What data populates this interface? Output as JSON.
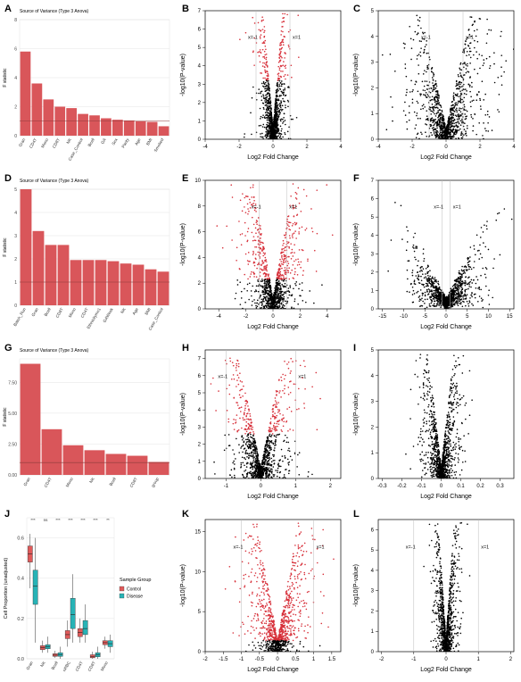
{
  "colors": {
    "bar": "#d9565a",
    "red": "#d7303a",
    "black": "#000000",
    "teal": "#27b3b6",
    "control": "#e05a5a",
    "grid": "#dddddd"
  },
  "chart_data": [
    {
      "panel": "A",
      "type": "bar",
      "title": "Source of Variance (Type 3 Anova)",
      "ylabel": "F statistic",
      "ylim": [
        0,
        8
      ],
      "yticks": [
        0,
        2,
        4,
        6,
        8
      ],
      "refline": 1,
      "categories": [
        "Gran",
        "CD4T",
        "Mono",
        "CD8T",
        "NK",
        "Case_Control",
        "Bcell",
        "GA",
        "Sex",
        "Parity",
        "Age",
        "BMI",
        "Smoked"
      ],
      "values": [
        5.8,
        3.6,
        2.5,
        2.0,
        1.9,
        1.5,
        1.4,
        1.2,
        1.1,
        1.05,
        1.0,
        0.95,
        0.65
      ]
    },
    {
      "panel": "B",
      "type": "scatter",
      "xlabel": "Log2 Fold Change",
      "ylabel": "-log10(P-value)",
      "xlim": [
        -4,
        4
      ],
      "ylim": [
        0,
        7
      ],
      "xticks": [
        -4,
        -2,
        0,
        2,
        4
      ],
      "yticks": [
        0,
        1,
        2,
        3,
        4,
        5,
        6,
        7
      ],
      "vlines": [
        -1,
        1
      ],
      "vline_labels": [
        "x=-1",
        "x=1"
      ],
      "sig_threshold": 3.2,
      "spread": 0.35
    },
    {
      "panel": "C",
      "type": "scatter",
      "xlabel": "Log2 Fold Change",
      "ylabel": "-log10(P-value)",
      "xlim": [
        -4,
        4
      ],
      "ylim": [
        0,
        5
      ],
      "xticks": [
        -4,
        -2,
        0,
        2,
        4
      ],
      "yticks": [
        0,
        1,
        2,
        3,
        4,
        5
      ],
      "vlines": [
        -1,
        1
      ],
      "vline_labels": [
        "x=-1",
        "x=1"
      ],
      "sig_threshold": null,
      "spread": 0.9
    },
    {
      "panel": "D",
      "type": "bar",
      "title": "Source of Variance (Type 3 Anova)",
      "ylabel": "F statistic",
      "ylim": [
        0,
        5
      ],
      "yticks": [
        0,
        1,
        2,
        3,
        4,
        5
      ],
      "refline": 1,
      "categories": [
        "Batch_Run",
        "Gran",
        "Bcell",
        "CD8T",
        "Mono",
        "CD4T",
        "Ethnicitymn1",
        "GAWeek",
        "NK",
        "Age",
        "BMI",
        "Case_Control"
      ],
      "values": [
        5.0,
        3.2,
        2.6,
        2.6,
        1.95,
        1.95,
        1.95,
        1.9,
        1.8,
        1.75,
        1.55,
        1.45
      ]
    },
    {
      "panel": "E",
      "type": "scatter",
      "xlabel": "Log2 Fold Change",
      "ylabel": "-log10(P-value)",
      "xlim": [
        -5,
        5
      ],
      "ylim": [
        0,
        10
      ],
      "xticks": [
        -4,
        -2,
        0,
        2,
        4
      ],
      "yticks": [
        0,
        2,
        4,
        6,
        8,
        10
      ],
      "vlines": [
        -1,
        1
      ],
      "vline_labels": [
        "x=-1",
        "x=1"
      ],
      "sig_threshold": 2.3,
      "spread": 0.9
    },
    {
      "panel": "F",
      "type": "scatter",
      "xlabel": "Log2 Fold Change",
      "ylabel": "-log10(P-value)",
      "xlim": [
        -16,
        16
      ],
      "ylim": [
        0,
        7
      ],
      "xticks": [
        -15,
        -10,
        -5,
        0,
        5,
        10,
        15
      ],
      "yticks": [
        0,
        1,
        2,
        3,
        4,
        5,
        6,
        7
      ],
      "vlines": [
        -1,
        1
      ],
      "vline_labels": [
        "x=-1",
        "x=1"
      ],
      "sig_threshold": null,
      "spread": 3.5
    },
    {
      "panel": "G",
      "type": "bar",
      "title": "Source of Variance (Type 3 Anova)",
      "ylabel": "F statistic",
      "ylim": [
        0,
        9.4
      ],
      "yticks": [
        0,
        2.5,
        5,
        7.5
      ],
      "ytick_labels": [
        "0.00",
        "2.50",
        "5.00",
        "7.50"
      ],
      "refline": 1,
      "categories": [
        "Gran",
        "CD4T",
        "Mono",
        "NK",
        "Bcell",
        "CD8T",
        "group"
      ],
      "values": [
        9.0,
        3.7,
        2.4,
        2.0,
        1.7,
        1.55,
        1.05
      ]
    },
    {
      "panel": "H",
      "type": "scatter",
      "xlabel": "Log2 Fold Change",
      "ylabel": "-log10(P-value)",
      "xlim": [
        -1.6,
        2.3
      ],
      "ylim": [
        0,
        7.5
      ],
      "xticks": [
        -1,
        0,
        1,
        2
      ],
      "yticks": [
        0,
        1,
        2,
        3,
        4,
        5,
        6,
        7
      ],
      "vlines": [
        -1,
        1
      ],
      "vline_labels": [
        "x=-1",
        "x=1"
      ],
      "sig_threshold": 2.6,
      "spread": 0.4
    },
    {
      "panel": "I",
      "type": "scatter",
      "xlabel": "Log2 Fold Change",
      "ylabel": "-log10(P-value)",
      "xlim": [
        -0.32,
        0.37
      ],
      "ylim": [
        0,
        5
      ],
      "xticks": [
        -0.3,
        -0.2,
        -0.1,
        0.0,
        0.1,
        0.2,
        0.3
      ],
      "yticks": [
        0,
        1,
        2,
        3,
        4,
        5
      ],
      "vlines": [],
      "vline_labels": [],
      "sig_threshold": null,
      "spread": 0.04
    },
    {
      "panel": "J",
      "type": "box",
      "ylabel": "Cell Proportion (unadjusted)",
      "ylim": [
        0,
        0.7
      ],
      "yticks": [
        0,
        0.2,
        0.4,
        0.6
      ],
      "ytick_labels": [
        "0.0",
        "0.2",
        "0.4",
        "0.6"
      ],
      "categories": [
        "Gran",
        "NK",
        "Bcell",
        "nRBC",
        "CD4T",
        "CD8T",
        "Mono"
      ],
      "significance": [
        "***",
        "ns",
        "***",
        "***",
        "***",
        "***",
        "**"
      ],
      "legend_title": "Sample Group",
      "legend_items": [
        "Control",
        "Disease"
      ],
      "series": [
        {
          "name": "Control",
          "boxes": [
            [
              0.35,
              0.48,
              0.52,
              0.56,
              0.62
            ],
            [
              0.03,
              0.045,
              0.055,
              0.065,
              0.09
            ],
            [
              0.005,
              0.012,
              0.018,
              0.025,
              0.04
            ],
            [
              0.06,
              0.1,
              0.12,
              0.14,
              0.19
            ],
            [
              0.08,
              0.11,
              0.13,
              0.15,
              0.2
            ],
            [
              0.0,
              0.005,
              0.01,
              0.02,
              0.035
            ],
            [
              0.05,
              0.07,
              0.08,
              0.09,
              0.11
            ]
          ]
        },
        {
          "name": "Disease",
          "boxes": [
            [
              0.08,
              0.27,
              0.36,
              0.44,
              0.6
            ],
            [
              0.03,
              0.05,
              0.06,
              0.07,
              0.11
            ],
            [
              0.0,
              0.012,
              0.02,
              0.03,
              0.06
            ],
            [
              0.08,
              0.15,
              0.22,
              0.3,
              0.42
            ],
            [
              0.08,
              0.12,
              0.15,
              0.19,
              0.27
            ],
            [
              0.0,
              0.01,
              0.02,
              0.03,
              0.06
            ],
            [
              0.03,
              0.06,
              0.075,
              0.09,
              0.12
            ]
          ]
        }
      ]
    },
    {
      "panel": "K",
      "type": "scatter",
      "xlabel": "Log2 Fold Change",
      "ylabel": "-log10(P-value)",
      "xlim": [
        -2.0,
        1.75
      ],
      "ylim": [
        0,
        16.5
      ],
      "xticks": [
        -2.0,
        -1.5,
        -1.0,
        -0.5,
        0.0,
        0.5,
        1.0,
        1.5
      ],
      "yticks": [
        0,
        5,
        10,
        15
      ],
      "vlines": [
        -1,
        1
      ],
      "vline_labels": [
        "x=-1",
        "x=1"
      ],
      "sig_threshold": 1.4,
      "spread": 0.35
    },
    {
      "panel": "L",
      "type": "scatter",
      "xlabel": "Log2 Fold Change",
      "ylabel": "-log10(P-value)",
      "xlim": [
        -2.1,
        2.1
      ],
      "ylim": [
        0,
        6.5
      ],
      "xticks": [
        -2,
        -1,
        0,
        1,
        2
      ],
      "yticks": [
        0,
        1,
        2,
        3,
        4,
        5,
        6
      ],
      "vlines": [
        -1,
        1
      ],
      "vline_labels": [
        "x=-1",
        "x=1"
      ],
      "sig_threshold": null,
      "spread": 0.15
    }
  ]
}
